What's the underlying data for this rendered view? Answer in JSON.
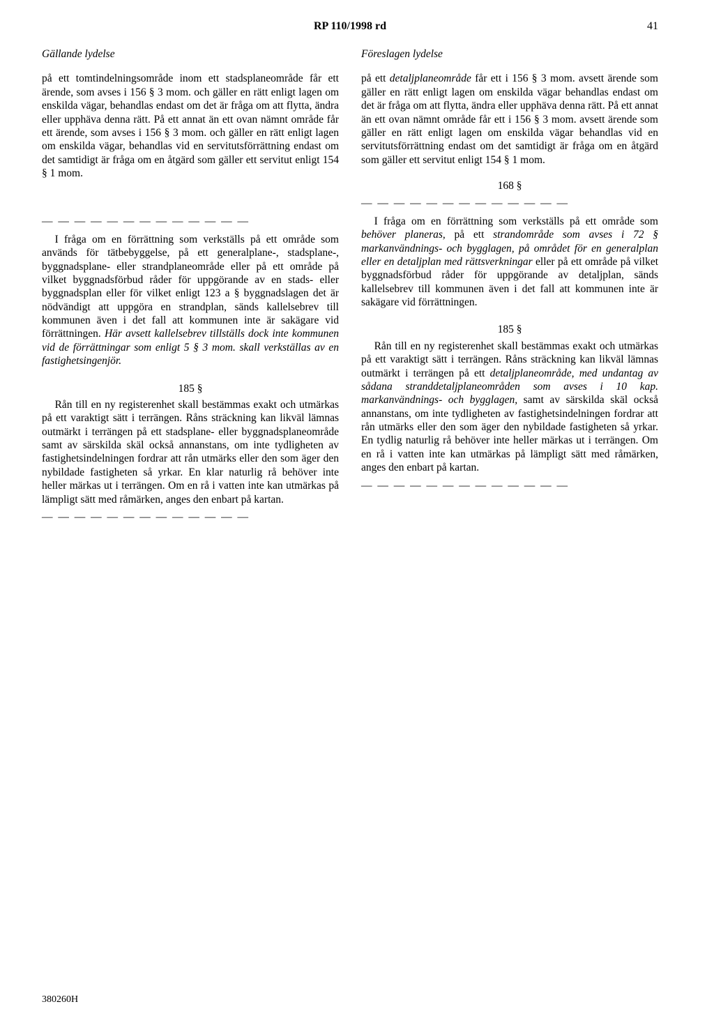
{
  "header": {
    "doc_title": "RP 110/1998 rd",
    "page_number": "41"
  },
  "left": {
    "heading": "Gällande lydelse",
    "para1": "på ett tomtindelningsområde inom ett stadsplaneområde får ett ärende, som avses i 156 § 3 mom. och gäller en rätt enligt lagen om enskilda vägar, behandlas endast om det är fråga om att flytta, ändra eller upphäva denna rätt. På ett annat än ett ovan nämnt område får ett ärende, som avses i 156 § 3 mom. och gäller en rätt enligt lagen om enskilda vägar, behandlas vid en servitutsförrättning endast om det samtidigt är fråga om en åtgärd som gäller ett servitut enligt 154 § 1 mom.",
    "para168_a": "I fråga om en förrättning som verkställs på ett område som används för tätbebyggelse, på ett generalplane-, stadsplane-, byggnadsplane- eller strandplaneområde eller på ett område på vilket byggnadsförbud råder för uppgörande av en stads- eller byggnadsplan eller för vilket enligt 123 a § byggnadslagen det är nödvändigt att uppgöra en strandplan, sänds kallelsebrev till kommunen även i det fall att kommunen inte är sakägare vid förrättningen. ",
    "para168_b": "Här avsett kallelsebrev tillställs dock inte kommunen vid de förrättningar som enligt 5 § 3 mom. skall verkställas av en fastighetsingenjör.",
    "sec185": "185 §",
    "para185": "Rån till en ny registerenhet skall bestämmas exakt och utmärkas på ett varaktigt sätt i terrängen. Råns sträckning kan likväl lämnas outmärkt i terrängen på ett stadsplane- eller byggnadsplaneområde samt av särskilda skäl också annanstans, om inte tydligheten av fastighetsindelningen fordrar att rån utmärks eller den som äger den nybildade fastigheten så yrkar. En klar naturlig rå behöver inte heller märkas ut i terrängen. Om en rå i vatten inte kan utmärkas på lämpligt sätt med råmärken, anges den enbart på kartan."
  },
  "right": {
    "heading": "Föreslagen lydelse",
    "para1_a": "på ett ",
    "para1_b": "detaljplaneområde",
    "para1_c": " får ett i 156 § 3 mom. avsett ärende som gäller en rätt enligt lagen om enskilda vägar behandlas endast om det är fråga om att flytta, ändra eller upphäva denna rätt. På ett annat än ett ovan nämnt område får ett i 156 § 3 mom. avsett ärende som gäller en rätt enligt lagen om enskilda vägar behandlas vid en servitutsförrättning endast om det samtidigt är fråga om en åtgärd som gäller ett servitut enligt 154 § 1 mom.",
    "para168_a": "I fråga om en förrättning som verkställs på ett område som ",
    "para168_b": "behöver planeras,",
    "para168_c": " på ett ",
    "para168_d": "strandområde som avses i 72 § markanvändnings- och bygglagen, på området för en generalplan eller en detaljplan med rättsverkningar",
    "para168_e": " eller på ett område på vilket byggnadsförbud råder för uppgörande av detaljplan, sänds kallelsebrev till kommunen även i det fall att kommunen inte är sakägare vid förrättningen.",
    "sec185": "185 §",
    "para185_a": "Rån till en ny registerenhet skall bestämmas exakt och utmärkas på ett varaktigt sätt i terrängen. Råns sträckning kan likväl lämnas outmärkt i terrängen på ett ",
    "para185_b": "detaljplaneområde, med undantag av sådana stranddetaljplaneområden som avses i 10 kap. markanvändnings- och bygglagen,",
    "para185_c": " samt av särskilda skäl också annanstans, om inte tydligheten av fastighetsindelningen fordrar att rån utmärks eller den som äger den nybildade fastigheten så yrkar. En tydlig naturlig rå behöver inte heller märkas ut i terrängen. Om en rå i vatten inte kan utmärkas på lämpligt sätt med råmärken, anges den enbart på kartan."
  },
  "sec168": "168 §",
  "divider": "— — — — — — — — — — — — —",
  "footer": "380260H"
}
